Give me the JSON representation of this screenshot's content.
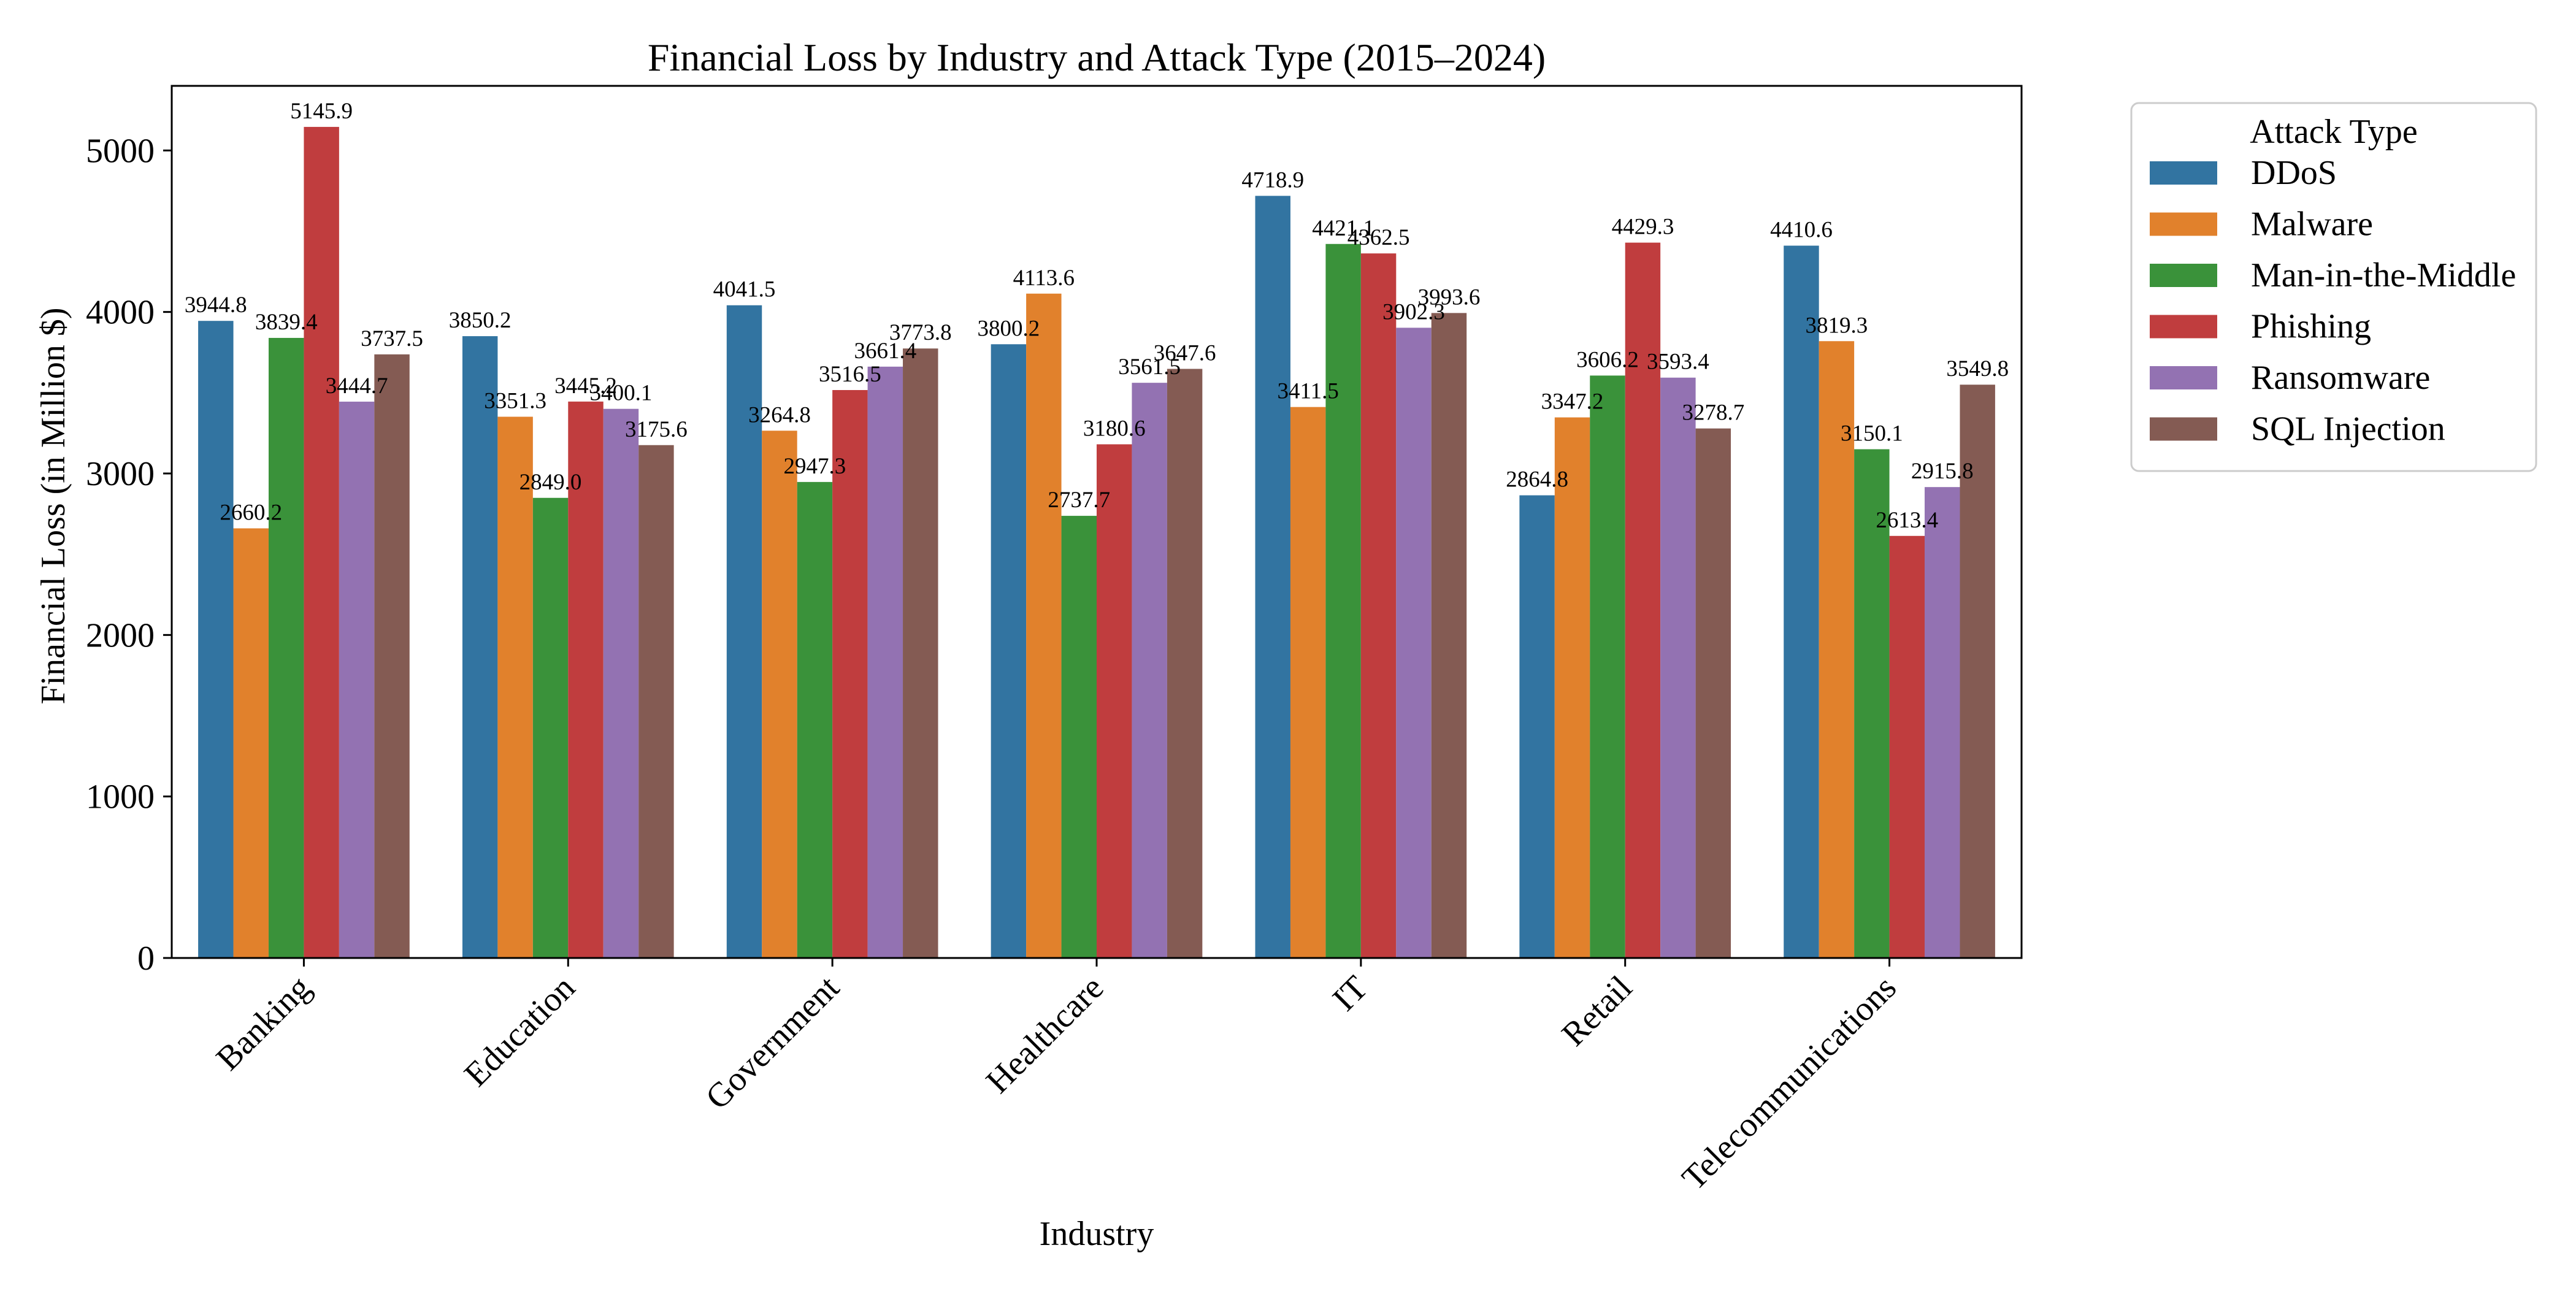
{
  "chart_data": {
    "type": "bar",
    "title": "Financial Loss by Industry and Attack Type (2015–2024)",
    "xlabel": "Industry",
    "ylabel": "Financial Loss (in Million $)",
    "ylim": [
      0,
      5400
    ],
    "yticks": [
      0,
      1000,
      2000,
      3000,
      4000,
      5000
    ],
    "grid": false,
    "legend": {
      "title": "Attack Type",
      "placement": "outside-upper-right"
    },
    "categories": [
      "Banking",
      "Education",
      "Government",
      "Healthcare",
      "IT",
      "Retail",
      "Telecommunications"
    ],
    "series": [
      {
        "name": "DDoS",
        "color": "#3274a1",
        "values": [
          3944.8,
          3850.2,
          4041.5,
          3800.2,
          4718.9,
          2864.8,
          4410.6
        ]
      },
      {
        "name": "Malware",
        "color": "#e1812c",
        "values": [
          2660.2,
          3351.3,
          3264.8,
          4113.6,
          3411.5,
          3347.2,
          3819.3
        ]
      },
      {
        "name": "Man-in-the-Middle",
        "color": "#3a923a",
        "values": [
          3839.4,
          2849.0,
          2947.3,
          2737.7,
          4421.1,
          3606.2,
          3150.1
        ]
      },
      {
        "name": "Phishing",
        "color": "#c03d3e",
        "values": [
          5145.9,
          3445.2,
          3516.5,
          3180.6,
          4362.5,
          4429.3,
          2613.4
        ]
      },
      {
        "name": "Ransomware",
        "color": "#9372b2",
        "values": [
          3444.7,
          3400.1,
          3661.4,
          3561.5,
          3902.3,
          3593.4,
          2915.8
        ]
      },
      {
        "name": "SQL Injection",
        "color": "#845b53",
        "values": [
          3737.5,
          3175.6,
          3773.8,
          3647.6,
          3993.6,
          3278.7,
          3549.8
        ]
      }
    ]
  }
}
